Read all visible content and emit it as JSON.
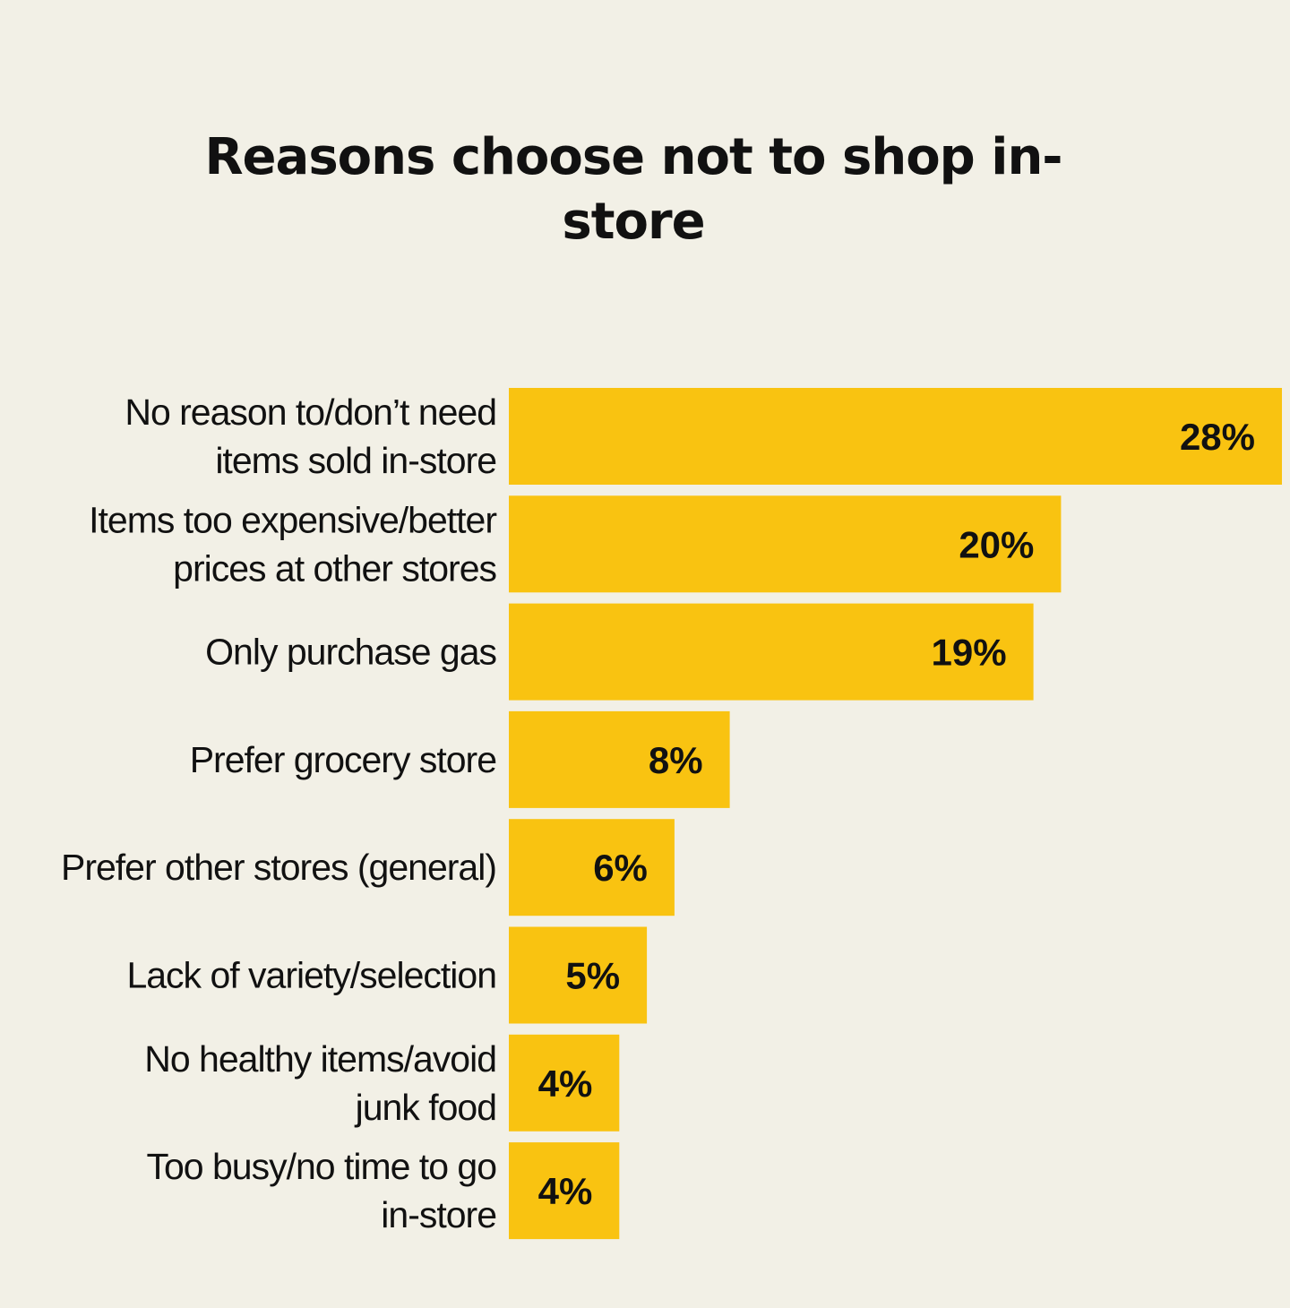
{
  "chart_data": {
    "type": "bar",
    "orientation": "horizontal",
    "title": "Reasons choose not to shop in-store",
    "categories": [
      [
        "No reason to/don’t need",
        "items sold in-store"
      ],
      [
        "Items too expensive/better",
        "prices at other stores"
      ],
      [
        "Only purchase gas"
      ],
      [
        "Prefer grocery store"
      ],
      [
        "Prefer other stores (general)"
      ],
      [
        "Lack of variety/selection"
      ],
      [
        "No healthy items/avoid",
        "junk food"
      ],
      [
        "Too busy/no time to go",
        "in-store"
      ]
    ],
    "values": [
      28,
      20,
      19,
      8,
      6,
      5,
      4,
      4
    ],
    "value_labels": [
      "28%",
      "20%",
      "19%",
      "8%",
      "6%",
      "5%",
      "4%",
      "4%"
    ],
    "unit": "%",
    "bar_color": "#f9c311",
    "background_color": "#f2f0e6",
    "gridlines": false,
    "legend": "none"
  }
}
